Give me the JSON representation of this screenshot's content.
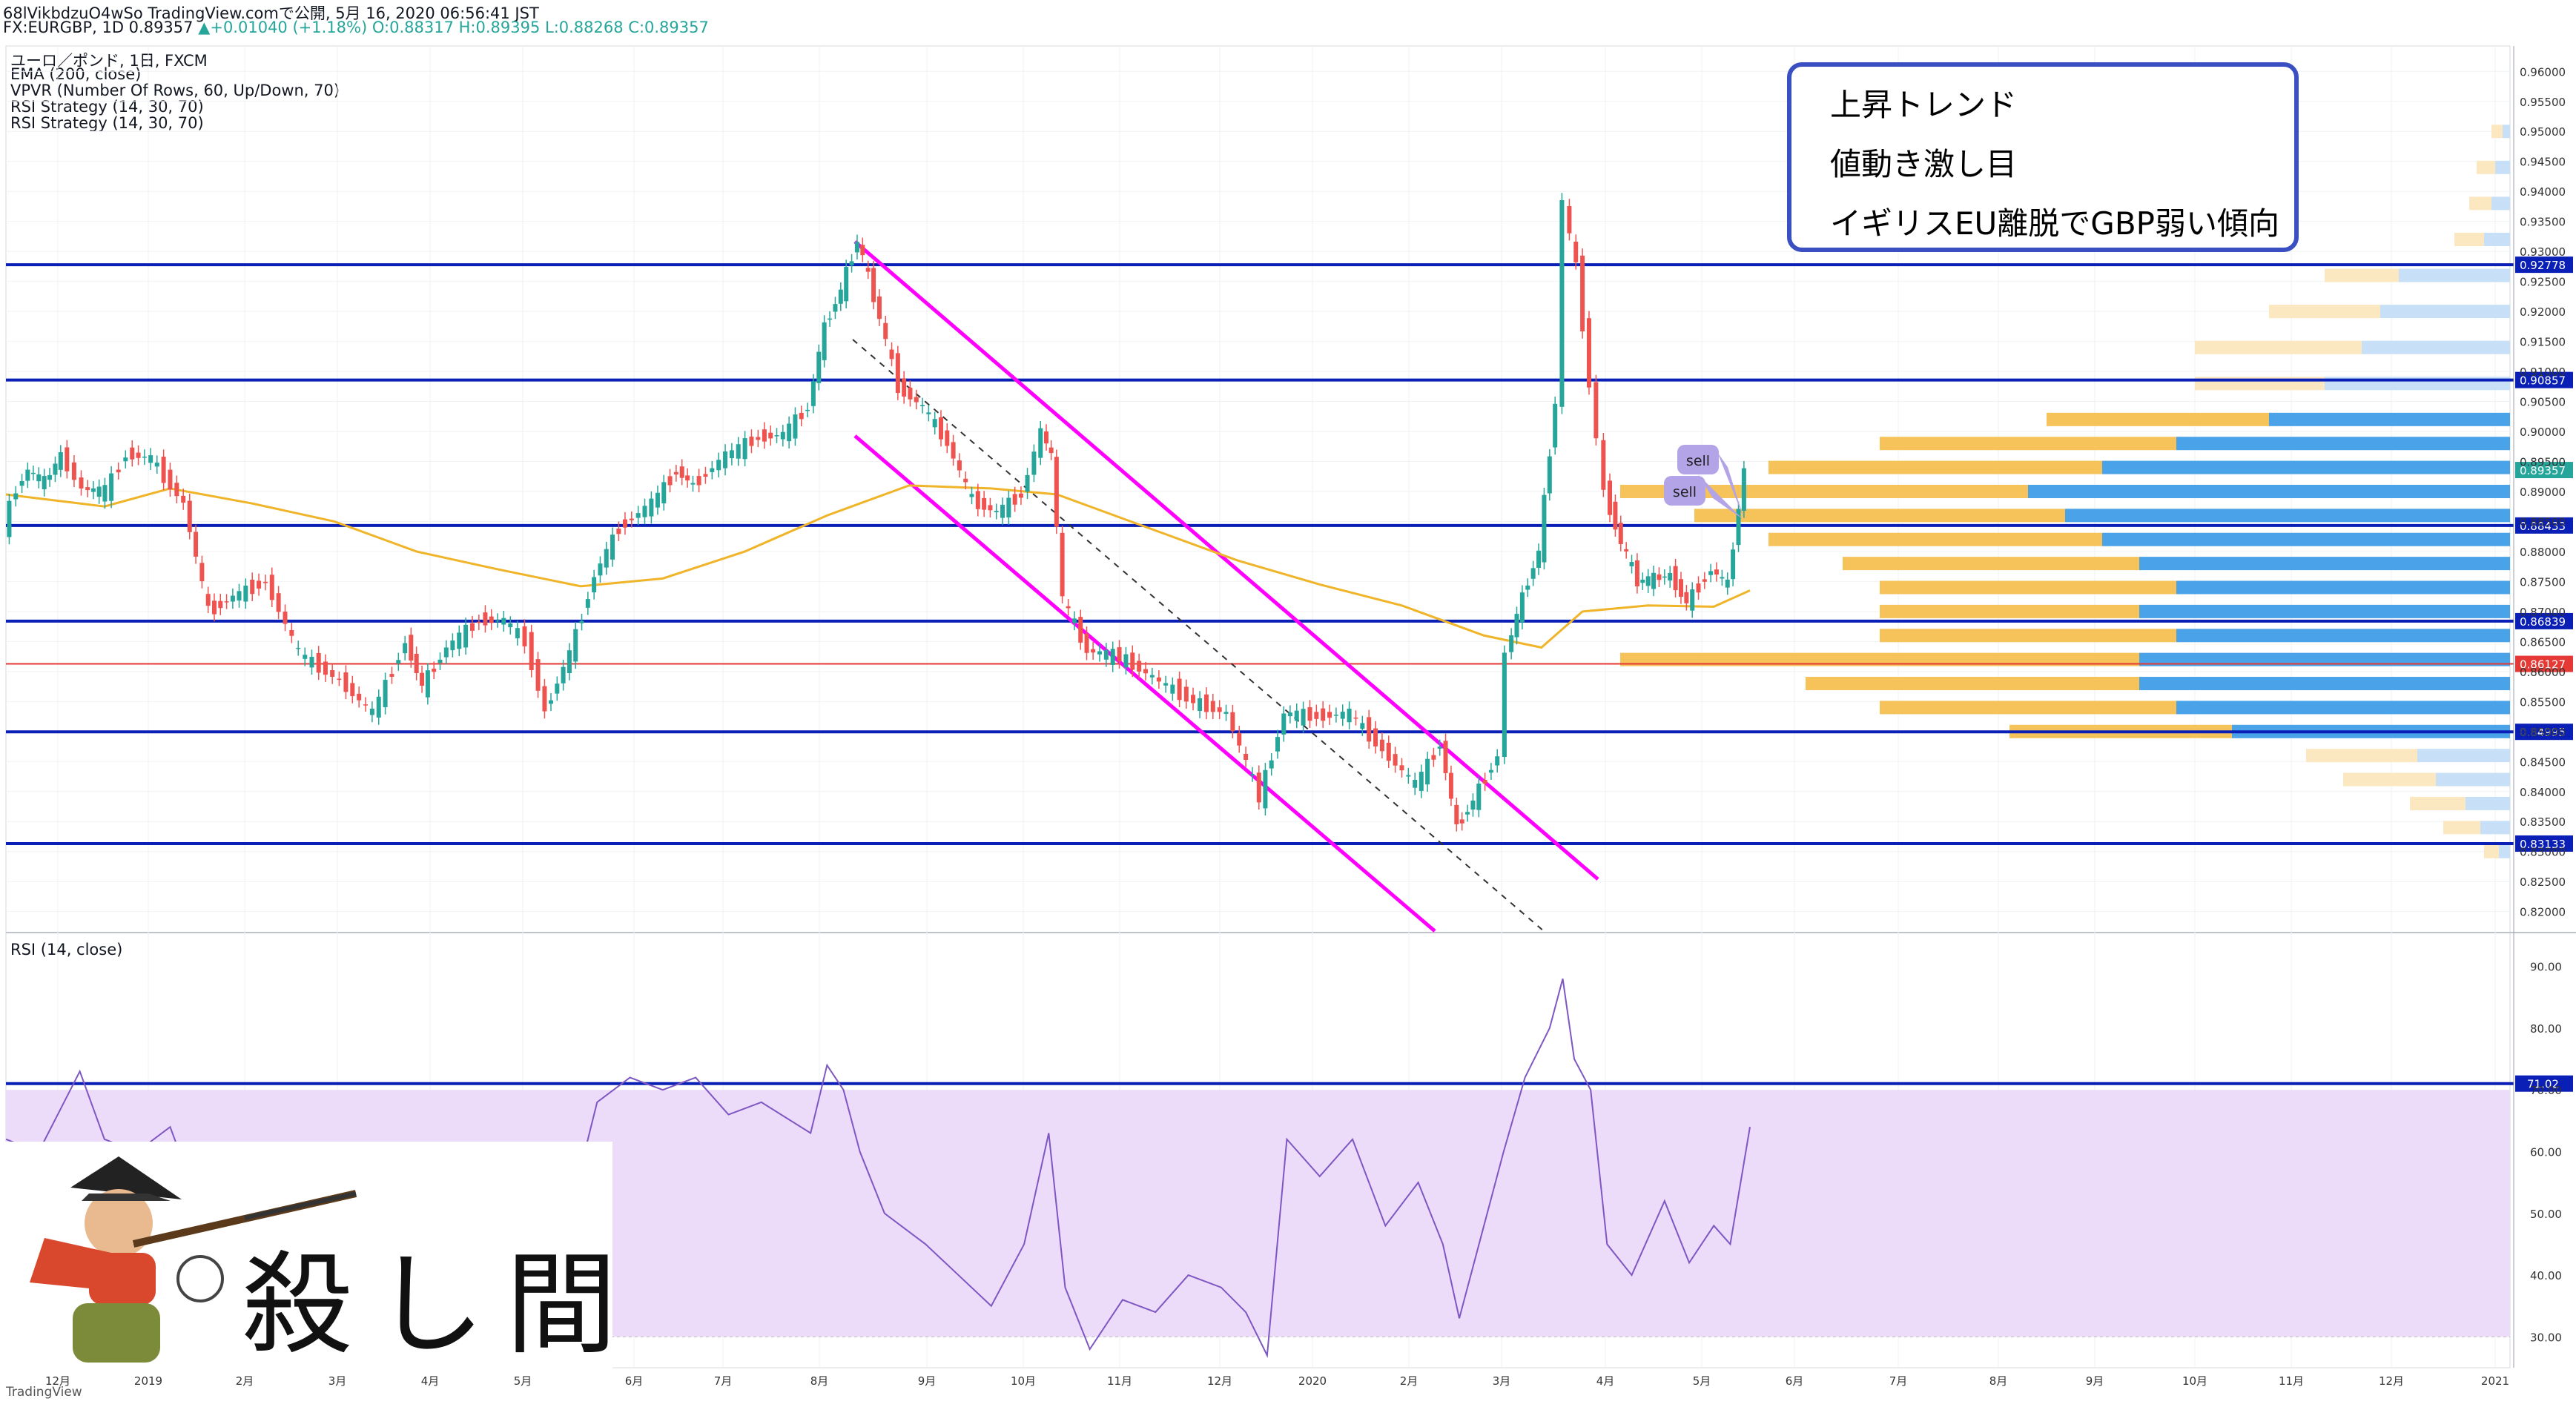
{
  "header": {
    "line1": "68lVikbdzuO4wSo TradingView.comで公開, 5月 16, 2020 06:56:41 JST",
    "line2_symbol": "FX:EURGBP, 1D 0.89357",
    "line2_change": "▲+0.01040 (+1.18%)",
    "line2_ohlc": "O:0.88317 H:0.89395 L:0.88268 C:0.89357"
  },
  "indicators": [
    "ユーロ／ポンド, 1日, FXCM",
    "EMA (200, close)",
    "VPVR (Number Of Rows, 60, Up/Down, 70)",
    "RSI Strategy (14, 30, 70)",
    "RSI Strategy (14, 30, 70)"
  ],
  "rsi_title": "RSI (14, close)",
  "note": [
    "上昇トレンド",
    "値動き激し目",
    "イギリスEU離脱でGBP弱い傾向"
  ],
  "logo_text": "殺し間",
  "footer": "TradingView",
  "colors": {
    "level_line": "#0a1fb5",
    "channel": "#ff00ff",
    "ema": "#f0b428",
    "up": "#26a69a",
    "down": "#ef5350",
    "rsi": "#7e57c2",
    "rsi_band": "#ecdcfa"
  },
  "chart_data": [
    {
      "type": "candlestick",
      "title": "EUR/GBP 1D",
      "ylim": [
        0.8165,
        0.963
      ],
      "price_ticks": [
        "0.96000",
        "0.95500",
        "0.95000",
        "0.94500",
        "0.94000",
        "0.93500",
        "0.93000",
        "0.92500",
        "0.92000",
        "0.91500",
        "0.91000",
        "0.90500",
        "0.90000",
        "0.89500",
        "0.89000",
        "0.88500",
        "0.88000",
        "0.87500",
        "0.87000",
        "0.86500",
        "0.86000",
        "0.85500",
        "0.85000",
        "0.84500",
        "0.84000",
        "0.83500",
        "0.83000",
        "0.82500",
        "0.82000"
      ],
      "x_labels": [
        "12月",
        "2019",
        "2月",
        "3月",
        "4月",
        "5月",
        "6月",
        "7月",
        "8月",
        "9月",
        "10月",
        "11月",
        "12月",
        "2020",
        "2月",
        "3月",
        "4月",
        "5月",
        "6月",
        "7月",
        "8月",
        "9月",
        "10月",
        "11月",
        "12月",
        "2021"
      ],
      "horizontal_levels": [
        {
          "value": 0.92778,
          "label": "0.92778",
          "color": "#0a1fb5"
        },
        {
          "value": 0.90857,
          "label": "0.90857",
          "color": "#0a1fb5"
        },
        {
          "value": 0.88433,
          "label": "0.88433",
          "color": "#0a1fb5"
        },
        {
          "value": 0.86839,
          "label": "0.86839",
          "color": "#0a1fb5"
        },
        {
          "value": 0.86127,
          "label": "0.86127",
          "color": "#e53935"
        },
        {
          "value": 0.84995,
          "label": "0.84995",
          "color": "#0a1fb5"
        },
        {
          "value": 0.83133,
          "label": "0.83133",
          "color": "#0a1fb5"
        }
      ],
      "last_price": {
        "value": 0.89357,
        "label": "0.89357"
      },
      "trade_labels": [
        "sell",
        "sell"
      ],
      "price_path": [
        [
          0,
          0.8842
        ],
        [
          8,
          0.8905
        ],
        [
          15,
          0.8935
        ],
        [
          25,
          0.8915
        ],
        [
          35,
          0.896
        ],
        [
          48,
          0.8905
        ],
        [
          62,
          0.89
        ],
        [
          75,
          0.8962
        ],
        [
          90,
          0.8955
        ],
        [
          110,
          0.888
        ],
        [
          125,
          0.87
        ],
        [
          140,
          0.8725
        ],
        [
          160,
          0.875
        ],
        [
          180,
          0.863
        ],
        [
          205,
          0.8585
        ],
        [
          225,
          0.853
        ],
        [
          245,
          0.865
        ],
        [
          255,
          0.8575
        ],
        [
          270,
          0.864
        ],
        [
          290,
          0.8685
        ],
        [
          305,
          0.8685
        ],
        [
          318,
          0.865
        ],
        [
          330,
          0.8535
        ],
        [
          345,
          0.863
        ],
        [
          360,
          0.876
        ],
        [
          375,
          0.884
        ],
        [
          395,
          0.888
        ],
        [
          410,
          0.8935
        ],
        [
          420,
          0.891
        ],
        [
          440,
          0.896
        ],
        [
          460,
          0.899
        ],
        [
          475,
          0.8995
        ],
        [
          490,
          0.904
        ],
        [
          500,
          0.9175
        ],
        [
          510,
          0.9235
        ],
        [
          520,
          0.932
        ],
        [
          530,
          0.9225
        ],
        [
          545,
          0.9075
        ],
        [
          560,
          0.904
        ],
        [
          575,
          0.898
        ],
        [
          590,
          0.8885
        ],
        [
          605,
          0.8865
        ],
        [
          620,
          0.8895
        ],
        [
          632,
          0.9
        ],
        [
          638,
          0.896
        ],
        [
          645,
          0.872
        ],
        [
          660,
          0.8635
        ],
        [
          680,
          0.8625
        ],
        [
          700,
          0.859
        ],
        [
          725,
          0.855
        ],
        [
          745,
          0.853
        ],
        [
          765,
          0.839
        ],
        [
          780,
          0.853
        ],
        [
          800,
          0.8525
        ],
        [
          820,
          0.853
        ],
        [
          840,
          0.847
        ],
        [
          860,
          0.841
        ],
        [
          875,
          0.848
        ],
        [
          885,
          0.834
        ],
        [
          895,
          0.8385
        ],
        [
          910,
          0.846
        ],
        [
          915,
          0.863
        ],
        [
          925,
          0.8725
        ],
        [
          935,
          0.88
        ],
        [
          945,
          0.905
        ],
        [
          950,
          0.938
        ],
        [
          958,
          0.9275
        ],
        [
          966,
          0.908
        ],
        [
          975,
          0.89
        ],
        [
          985,
          0.8815
        ],
        [
          995,
          0.875
        ],
        [
          1005,
          0.8755
        ],
        [
          1015,
          0.876
        ],
        [
          1025,
          0.8715
        ],
        [
          1040,
          0.877
        ],
        [
          1050,
          0.8745
        ],
        [
          1060,
          0.8936
        ]
      ],
      "ema200_path": [
        [
          0,
          0.8895
        ],
        [
          60,
          0.8875
        ],
        [
          100,
          0.8905
        ],
        [
          150,
          0.888
        ],
        [
          200,
          0.885
        ],
        [
          250,
          0.88
        ],
        [
          300,
          0.877
        ],
        [
          350,
          0.8742
        ],
        [
          400,
          0.8755
        ],
        [
          450,
          0.88
        ],
        [
          500,
          0.886
        ],
        [
          550,
          0.891
        ],
        [
          600,
          0.8905
        ],
        [
          640,
          0.8895
        ],
        [
          700,
          0.8835
        ],
        [
          750,
          0.8785
        ],
        [
          800,
          0.8745
        ],
        [
          850,
          0.871
        ],
        [
          900,
          0.866
        ],
        [
          935,
          0.864
        ],
        [
          960,
          0.87
        ],
        [
          1000,
          0.871
        ],
        [
          1040,
          0.8708
        ],
        [
          1062,
          0.8735
        ]
      ],
      "volume_profile": [
        {
          "price": 0.95,
          "up": 0.003,
          "down": 0.002
        },
        {
          "price": 0.944,
          "up": 0.005,
          "down": 0.004
        },
        {
          "price": 0.938,
          "up": 0.006,
          "down": 0.005
        },
        {
          "price": 0.932,
          "up": 0.008,
          "down": 0.007
        },
        {
          "price": 0.926,
          "up": 0.02,
          "down": 0.03
        },
        {
          "price": 0.92,
          "up": 0.03,
          "down": 0.035
        },
        {
          "price": 0.914,
          "up": 0.045,
          "down": 0.04
        },
        {
          "price": 0.908,
          "up": 0.035,
          "down": 0.05
        },
        {
          "price": 0.902,
          "up": 0.06,
          "down": 0.065
        },
        {
          "price": 0.898,
          "up": 0.08,
          "down": 0.09
        },
        {
          "price": 0.894,
          "up": 0.09,
          "down": 0.11
        },
        {
          "price": 0.89,
          "up": 0.11,
          "down": 0.13
        },
        {
          "price": 0.886,
          "up": 0.1,
          "down": 0.12
        },
        {
          "price": 0.882,
          "up": 0.09,
          "down": 0.11
        },
        {
          "price": 0.878,
          "up": 0.08,
          "down": 0.1
        },
        {
          "price": 0.874,
          "up": 0.08,
          "down": 0.09
        },
        {
          "price": 0.87,
          "up": 0.07,
          "down": 0.1
        },
        {
          "price": 0.866,
          "up": 0.08,
          "down": 0.09
        },
        {
          "price": 0.862,
          "up": 0.14,
          "down": 0.1
        },
        {
          "price": 0.858,
          "up": 0.09,
          "down": 0.1
        },
        {
          "price": 0.854,
          "up": 0.08,
          "down": 0.09
        },
        {
          "price": 0.85,
          "up": 0.06,
          "down": 0.075
        },
        {
          "price": 0.846,
          "up": 0.03,
          "down": 0.025
        },
        {
          "price": 0.842,
          "up": 0.025,
          "down": 0.02
        },
        {
          "price": 0.838,
          "up": 0.015,
          "down": 0.012
        },
        {
          "price": 0.834,
          "up": 0.01,
          "down": 0.008
        },
        {
          "price": 0.83,
          "up": 0.004,
          "down": 0.003
        }
      ]
    },
    {
      "type": "line",
      "title": "RSI (14, close)",
      "ylim": [
        25,
        95
      ],
      "ticks": [
        "90.00",
        "80.00",
        "70.00",
        "60.00",
        "50.00",
        "40.00",
        "30.00"
      ],
      "overbought": 70,
      "oversold": 30,
      "level": {
        "value": 71.02,
        "label": "71.02"
      },
      "x_labels": [
        "12月",
        "2019",
        "2月",
        "3月",
        "4月",
        "5月",
        "6月",
        "7月",
        "8月",
        "9月",
        "10月",
        "11月",
        "12月",
        "2020",
        "2月",
        "3月",
        "4月",
        "5月",
        "6月",
        "7月",
        "8月",
        "9月",
        "10月",
        "11月",
        "12月",
        "2021"
      ],
      "path": [
        [
          0,
          62
        ],
        [
          20,
          60
        ],
        [
          45,
          73
        ],
        [
          60,
          62
        ],
        [
          80,
          60
        ],
        [
          100,
          64
        ],
        [
          125,
          46
        ],
        [
          140,
          50
        ],
        [
          160,
          54
        ],
        [
          180,
          42
        ],
        [
          210,
          40
        ],
        [
          240,
          55
        ],
        [
          260,
          42
        ],
        [
          280,
          52
        ],
        [
          305,
          58
        ],
        [
          320,
          45
        ],
        [
          330,
          36
        ],
        [
          345,
          52
        ],
        [
          360,
          68
        ],
        [
          380,
          72
        ],
        [
          400,
          70
        ],
        [
          420,
          72
        ],
        [
          440,
          66
        ],
        [
          460,
          68
        ],
        [
          490,
          63
        ],
        [
          500,
          74
        ],
        [
          510,
          70
        ],
        [
          520,
          60
        ],
        [
          535,
          50
        ],
        [
          560,
          45
        ],
        [
          580,
          40
        ],
        [
          600,
          35
        ],
        [
          620,
          45
        ],
        [
          635,
          63
        ],
        [
          645,
          38
        ],
        [
          660,
          28
        ],
        [
          680,
          36
        ],
        [
          700,
          34
        ],
        [
          720,
          40
        ],
        [
          740,
          38
        ],
        [
          755,
          34
        ],
        [
          768,
          27
        ],
        [
          780,
          62
        ],
        [
          800,
          56
        ],
        [
          820,
          62
        ],
        [
          840,
          48
        ],
        [
          860,
          55
        ],
        [
          875,
          45
        ],
        [
          885,
          33
        ],
        [
          900,
          48
        ],
        [
          912,
          60
        ],
        [
          925,
          72
        ],
        [
          940,
          80
        ],
        [
          948,
          88
        ],
        [
          955,
          75
        ],
        [
          965,
          70
        ],
        [
          975,
          45
        ],
        [
          990,
          40
        ],
        [
          1010,
          52
        ],
        [
          1025,
          42
        ],
        [
          1040,
          48
        ],
        [
          1050,
          45
        ],
        [
          1062,
          64
        ]
      ]
    }
  ]
}
